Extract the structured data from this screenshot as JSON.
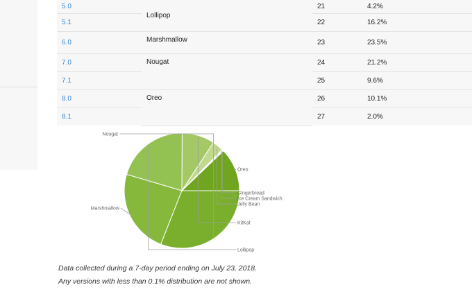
{
  "table": {
    "rows": [
      {
        "version": "5.0",
        "codename": "Lollipop",
        "api": "21",
        "distribution": "4.2%"
      },
      {
        "version": "5.1",
        "codename": "",
        "api": "22",
        "distribution": "16.2%"
      },
      {
        "version": "6.0",
        "codename": "Marshmallow",
        "api": "23",
        "distribution": "23.5%"
      },
      {
        "version": "7.0",
        "codename": "Nougat",
        "api": "24",
        "distribution": "21.2%"
      },
      {
        "version": "7.1",
        "codename": "",
        "api": "25",
        "distribution": "9.6%"
      },
      {
        "version": "8.0",
        "codename": "Oreo",
        "api": "26",
        "distribution": "10.1%"
      },
      {
        "version": "8.1",
        "codename": "",
        "api": "27",
        "distribution": "2.0%"
      }
    ]
  },
  "chart_data": {
    "type": "pie",
    "title": "",
    "slices": [
      {
        "label": "Oreo",
        "value": 12.1,
        "color": "#6fa51f"
      },
      {
        "label": "Gingerbread",
        "value": 0.2,
        "color": "#e9f1d9"
      },
      {
        "label": "Ice Cream Sandwich",
        "value": 0.3,
        "color": "#dce9c4"
      },
      {
        "label": "Jelly Bean",
        "value": 3.1,
        "color": "#c0d98e"
      },
      {
        "label": "KitKat",
        "value": 9.1,
        "color": "#a4c865"
      },
      {
        "label": "Lollipop",
        "value": 20.4,
        "color": "#94c252"
      },
      {
        "label": "Marshmallow",
        "value": 23.5,
        "color": "#86b83c"
      },
      {
        "label": "Nougat",
        "value": 30.8,
        "color": "#79af2c"
      }
    ]
  },
  "notes": {
    "line1": "Data collected during a 7-day period ending on July 23, 2018.",
    "line2": "Any versions with less than 0.1% distribution are not shown."
  }
}
